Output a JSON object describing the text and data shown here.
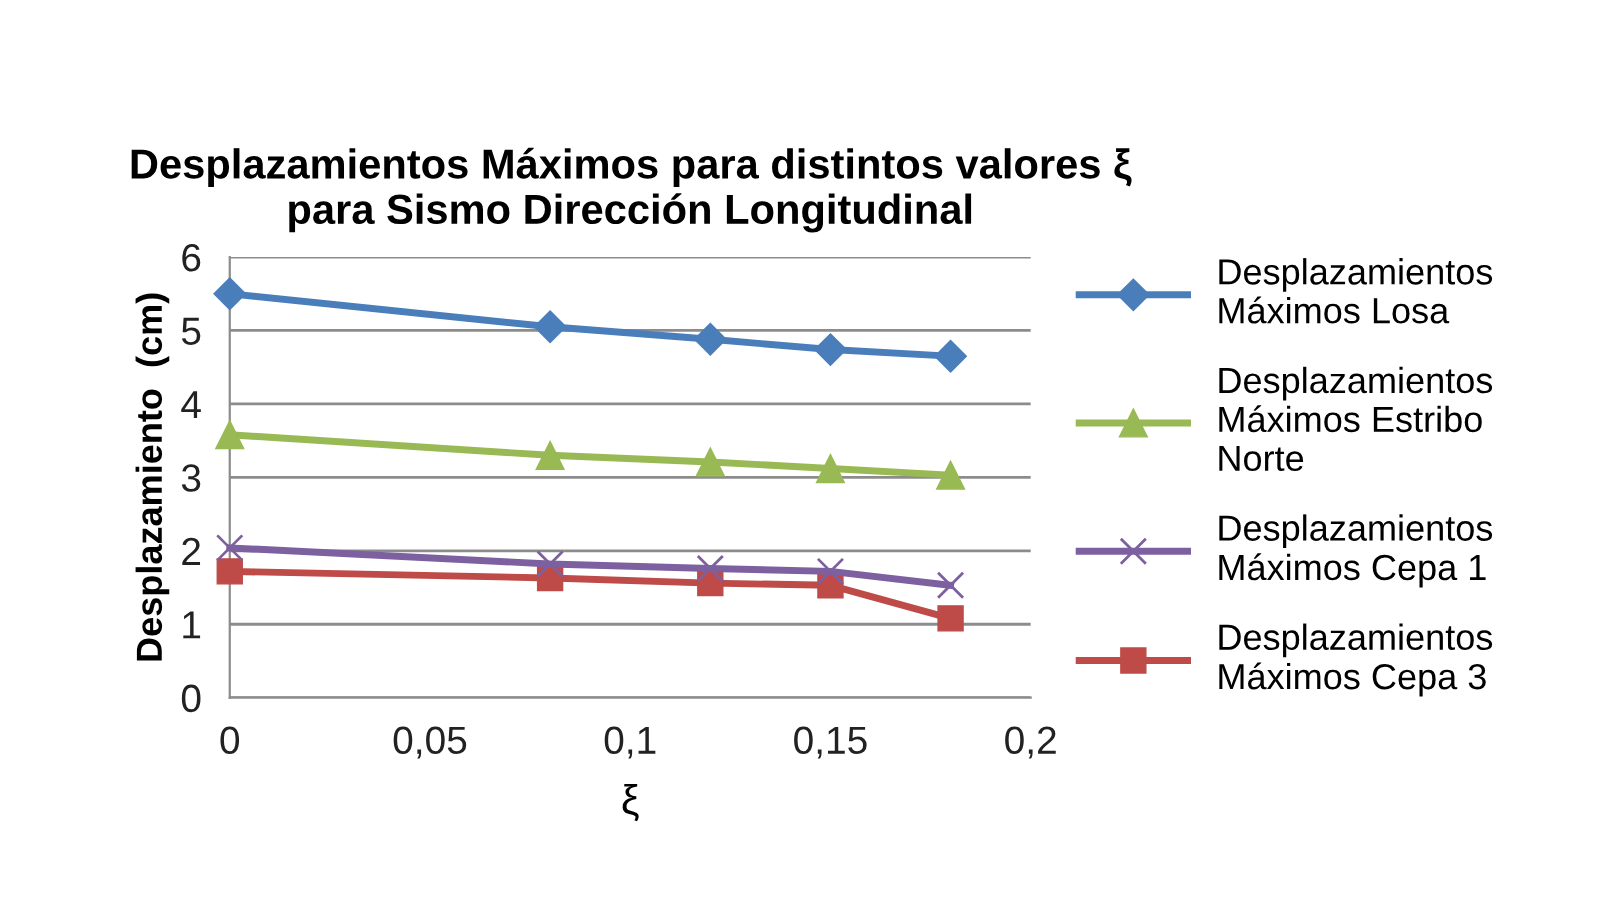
{
  "chart_data": {
    "type": "line",
    "title": "Desplazamientos Máximos para distintos valores ξ\npara Sismo Dirección Longitudinal",
    "xlabel": "ξ",
    "ylabel": "Desplazamiento  (cm)",
    "x": [
      0,
      0.08,
      0.12,
      0.15,
      0.18
    ],
    "series": [
      {
        "name": "Desplazamientos Máximos Losa",
        "color": "#4a7ebb",
        "marker": "diamond",
        "values": [
          5.5,
          5.05,
          4.88,
          4.74,
          4.65
        ]
      },
      {
        "name": "Desplazamientos Máximos Estribo Norte",
        "color": "#98b954",
        "marker": "triangle",
        "values": [
          3.58,
          3.3,
          3.21,
          3.12,
          3.03
        ]
      },
      {
        "name": "Desplazamientos Máximos Cepa 1",
        "color": "#7d60a0",
        "marker": "cross",
        "values": [
          2.04,
          1.82,
          1.76,
          1.72,
          1.53
        ]
      },
      {
        "name": "Desplazamientos Máximos Cepa 3",
        "color": "#be4b48",
        "marker": "square",
        "values": [
          1.72,
          1.63,
          1.56,
          1.53,
          1.08
        ]
      }
    ],
    "xlim": [
      0,
      0.2
    ],
    "xticks": [
      {
        "value": 0,
        "label": "0"
      },
      {
        "value": 0.05,
        "label": "0,05"
      },
      {
        "value": 0.1,
        "label": "0,1"
      },
      {
        "value": 0.15,
        "label": "0,15"
      },
      {
        "value": 0.2,
        "label": "0,2"
      }
    ],
    "ylim": [
      0,
      6
    ],
    "yticks": [
      0,
      1,
      2,
      3,
      4,
      5,
      6
    ],
    "grid": "y",
    "legend": "right",
    "line_style": "solid"
  }
}
